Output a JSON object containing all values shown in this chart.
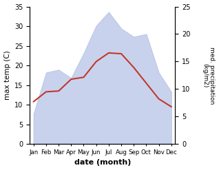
{
  "months": [
    "Jan",
    "Feb",
    "Mar",
    "Apr",
    "May",
    "Jun",
    "Jul",
    "Aug",
    "Sep",
    "Oct",
    "Nov",
    "Dec"
  ],
  "max_temp": [
    10.8,
    13.3,
    13.5,
    16.5,
    17.0,
    21.0,
    23.2,
    23.0,
    19.5,
    15.5,
    11.5,
    9.5
  ],
  "precipitation": [
    5.5,
    13.0,
    13.5,
    12.0,
    16.5,
    21.5,
    24.0,
    21.0,
    19.5,
    20.0,
    13.0,
    9.5
  ],
  "temp_ylim": [
    0,
    35
  ],
  "precip_ylim": [
    0,
    25
  ],
  "temp_yticks": [
    0,
    5,
    10,
    15,
    20,
    25,
    30,
    35
  ],
  "precip_yticks": [
    0,
    5,
    10,
    15,
    20,
    25
  ],
  "temp_color": "#c0392b",
  "fill_color": "#b8c4e8",
  "fill_alpha": 0.75,
  "xlabel": "date (month)",
  "ylabel_left": "max temp (C)",
  "ylabel_right": "med. precipitation\n(kg/m2)",
  "background_color": "#ffffff"
}
